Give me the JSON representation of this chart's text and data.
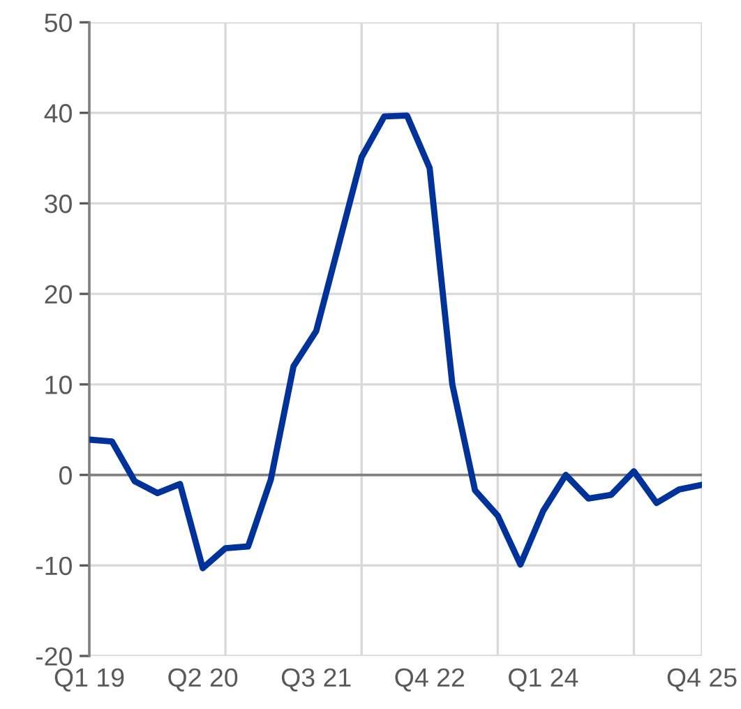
{
  "chart_data": {
    "type": "line",
    "categories": [
      "Q1 19",
      null,
      null,
      null,
      null,
      "Q2 20",
      null,
      null,
      null,
      null,
      "Q3 21",
      null,
      null,
      null,
      null,
      "Q4 22",
      null,
      null,
      null,
      null,
      "Q1 24",
      null,
      null,
      null,
      null,
      null,
      null,
      "Q4 25"
    ],
    "series": [
      {
        "color": "#003399",
        "values": [
          3.9,
          3.7,
          -0.7,
          -2.0,
          -1.0,
          -10.3,
          -8.1,
          -7.9,
          -0.5,
          12.0,
          15.9,
          25.5,
          35.1,
          39.6,
          39.7,
          33.9,
          10.0,
          -1.7,
          -4.5,
          -9.9,
          -4.0,
          0.0,
          -2.6,
          -2.2,
          0.4,
          -3.1,
          -1.6,
          -1.1
        ]
      }
    ],
    "ylim": [
      -20,
      50
    ],
    "yticks": [
      -20,
      -10,
      0,
      10,
      20,
      30,
      40,
      50
    ],
    "ref_lines": [
      {
        "axis": "y",
        "value": 0,
        "color": "#808080"
      }
    ],
    "grid": true,
    "marker": "none",
    "line_style": "solid",
    "legend": false
  }
}
